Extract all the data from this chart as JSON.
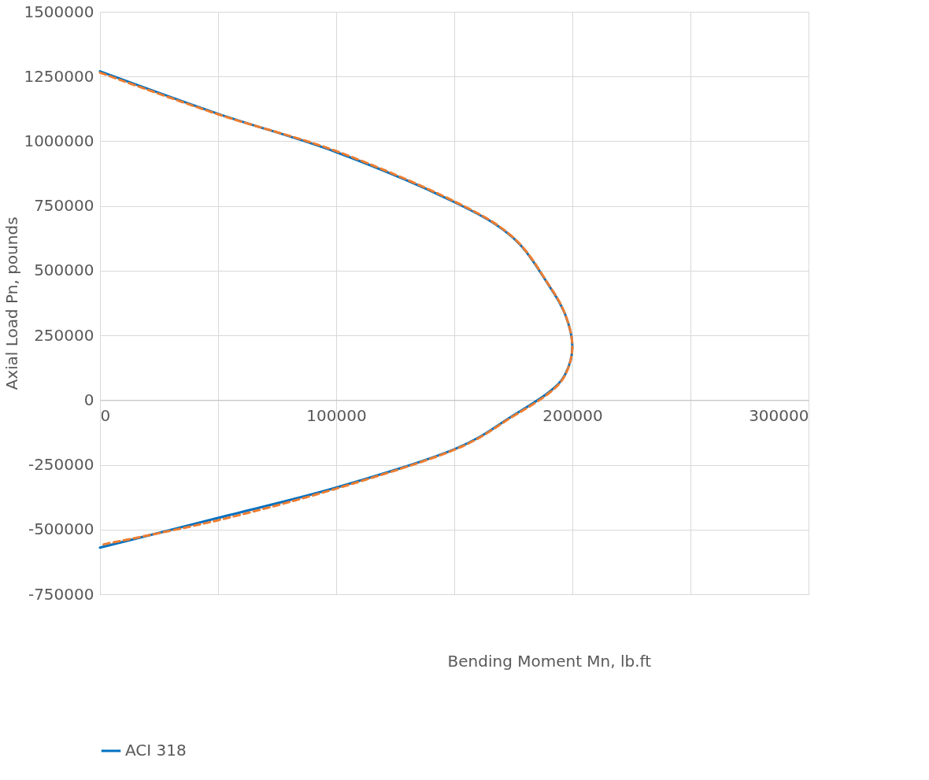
{
  "chart_data": {
    "type": "line",
    "xlabel": "Bending Moment Mn, lb.ft",
    "ylabel": "Axial Load Pn, pounds",
    "xlim": [
      0,
      300000
    ],
    "xticks": [
      0,
      {
        "value": 50000,
        "label": null
      },
      100000,
      {
        "value": 150000,
        "label": null
      },
      200000,
      {
        "value": 250000,
        "label": null
      },
      300000
    ],
    "ylim": [
      -750000,
      1500000
    ],
    "yticks": [
      -750000,
      -500000,
      -250000,
      0,
      250000,
      500000,
      750000,
      1000000,
      1250000,
      1500000
    ],
    "grid": true,
    "legend": "bottom",
    "series": [
      {
        "name": "ACI 318",
        "color": "#0070c0",
        "line_style": "solid",
        "x": [
          0,
          50000,
          100000,
          150000,
          175000,
          190000,
          197000,
          200000,
          197000,
          190000,
          175000,
          150000,
          100000,
          50000,
          0
        ],
        "values": [
          1270000,
          1106000,
          958000,
          765000,
          626000,
          444000,
          330000,
          207000,
          100000,
          30000,
          -59000,
          -190000,
          -338000,
          -455000,
          -570000
        ]
      },
      {
        "color": "#ed7d31",
        "line_style": "dashed",
        "x": [
          0,
          50000,
          100000,
          150000,
          175000,
          190000,
          197000,
          200000,
          197000,
          190000,
          175000,
          150000,
          100000,
          50000,
          0
        ],
        "values": [
          1265000,
          1104000,
          962000,
          768000,
          628000,
          446000,
          330000,
          207000,
          98000,
          26000,
          -62000,
          -192000,
          -342000,
          -464000,
          -560000
        ]
      }
    ]
  }
}
